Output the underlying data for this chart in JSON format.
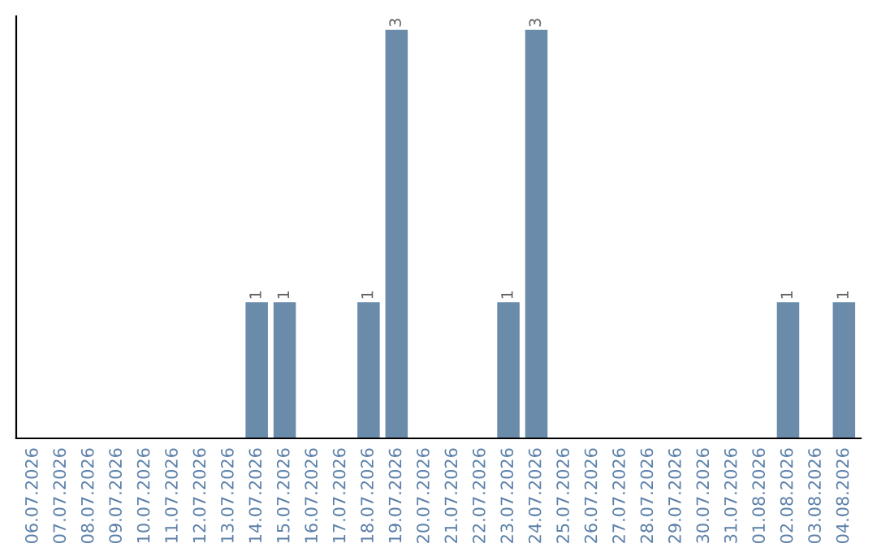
{
  "chart_data": {
    "type": "bar",
    "categories": [
      "06.07.2026",
      "07.07.2026",
      "08.07.2026",
      "09.07.2026",
      "10.07.2026",
      "11.07.2026",
      "12.07.2026",
      "13.07.2026",
      "14.07.2026",
      "15.07.2026",
      "16.07.2026",
      "17.07.2026",
      "18.07.2026",
      "19.07.2026",
      "20.07.2026",
      "21.07.2026",
      "22.07.2026",
      "23.07.2026",
      "24.07.2026",
      "25.07.2026",
      "26.07.2026",
      "27.07.2026",
      "28.07.2026",
      "29.07.2026",
      "30.07.2026",
      "31.07.2026",
      "01.08.2026",
      "02.08.2026",
      "03.08.2026",
      "04.08.2026"
    ],
    "values": [
      0,
      0,
      0,
      0,
      0,
      0,
      0,
      0,
      1,
      1,
      0,
      0,
      1,
      3,
      0,
      0,
      0,
      1,
      3,
      0,
      0,
      0,
      0,
      0,
      0,
      0,
      0,
      1,
      0,
      1
    ],
    "value_labels": [
      null,
      null,
      null,
      null,
      null,
      null,
      null,
      null,
      "1",
      "1",
      null,
      null,
      "1",
      "3",
      null,
      null,
      null,
      "1",
      "3",
      null,
      null,
      null,
      null,
      null,
      null,
      null,
      null,
      "1",
      null,
      "1"
    ],
    "color": "#6a8caa",
    "ylim": [
      0,
      3.1
    ],
    "tick_labels": "x",
    "grid": false,
    "legend": false
  }
}
